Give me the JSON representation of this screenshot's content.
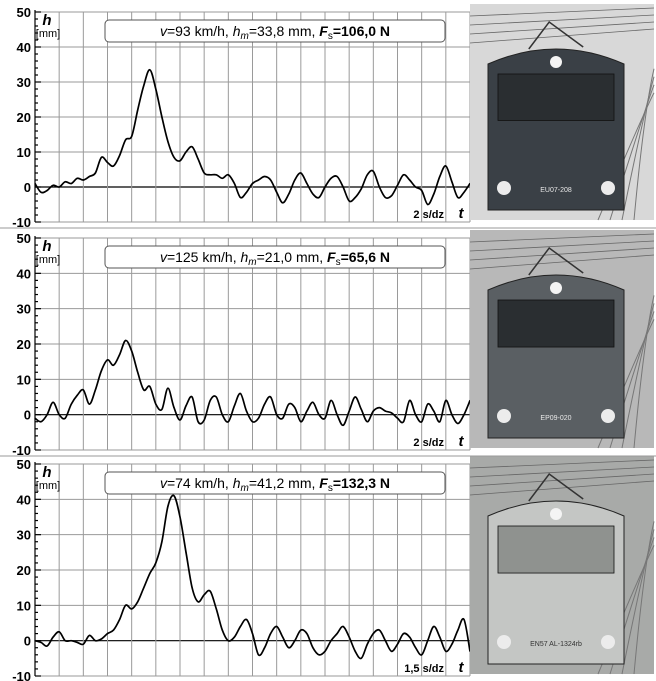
{
  "chart_data": [
    {
      "type": "line",
      "info": {
        "v_label": "v",
        "v_value": "=93 km/h,",
        "hm_label": "h",
        "hm_sub": "m",
        "hm_value": "=33,8 mm,",
        "fs_label": "F",
        "fs_sub": "s",
        "fs_value": "=106,0 N"
      },
      "ylabel": "h",
      "yunit": "[mm]",
      "xlabel": "t",
      "scale_label": "2 s/dz",
      "yticks": [
        "50",
        "40",
        "30",
        "20",
        "10",
        "0",
        "-10"
      ],
      "ylim": [
        -10,
        50
      ],
      "xlim": [
        0,
        36
      ],
      "x": [
        0,
        0.5,
        1,
        1.5,
        2,
        2.5,
        3,
        3.5,
        4,
        4.5,
        5,
        5.5,
        6,
        6.5,
        7,
        7.5,
        8,
        8.5,
        9,
        9.5,
        10,
        10.5,
        11,
        11.5,
        12,
        12.5,
        13,
        13.5,
        14,
        14.5,
        15,
        15.5,
        16,
        16.5,
        17,
        17.5,
        18,
        18.5,
        19,
        19.5,
        20,
        20.5,
        21,
        21.5,
        22,
        22.5,
        23,
        23.5,
        24,
        24.5,
        25,
        25.5,
        26,
        26.5,
        27,
        27.5,
        28,
        28.5,
        29,
        29.5,
        30,
        30.5,
        31,
        31.5,
        32,
        32.5,
        33,
        33.5,
        34,
        34.5,
        35,
        35.5,
        36
      ],
      "y": [
        1,
        -1.5,
        -1,
        0.5,
        0,
        1.5,
        1,
        2.5,
        2,
        3,
        4,
        8.5,
        7,
        6,
        9,
        13.5,
        14.5,
        22,
        29,
        33.5,
        28,
        20,
        13,
        8.5,
        7.5,
        10,
        11.5,
        8,
        4,
        3.5,
        3.5,
        2.5,
        3.5,
        1,
        -3,
        -1.5,
        1,
        2,
        3,
        2,
        -1.5,
        -4.5,
        -2,
        2,
        4,
        1,
        -2,
        -3,
        0,
        2.5,
        3,
        0,
        -4,
        -3,
        -0.5,
        3.5,
        4.5,
        0,
        -3,
        -2.5,
        0.5,
        3.5,
        2,
        0,
        -1,
        -5,
        -2,
        3,
        6,
        1.5,
        -3,
        -1.5,
        1
      ]
    },
    {
      "type": "line",
      "info": {
        "v_label": "v",
        "v_value": "=125 km/h,",
        "hm_label": "h",
        "hm_sub": "m",
        "hm_value": "=21,0 mm,",
        "fs_label": "F",
        "fs_sub": "s",
        "fs_value": "=65,6 N"
      },
      "ylabel": "h",
      "yunit": "[mm]",
      "xlabel": "t",
      "scale_label": "2 s/dz",
      "yticks": [
        "50",
        "40",
        "30",
        "20",
        "10",
        "0",
        "-10"
      ],
      "ylim": [
        -10,
        50
      ],
      "xlim": [
        0,
        36
      ],
      "x": [
        0,
        0.5,
        1,
        1.5,
        2,
        2.5,
        3,
        3.5,
        4,
        4.5,
        5,
        5.5,
        6,
        6.5,
        7,
        7.5,
        8,
        8.5,
        9,
        9.5,
        10,
        10.5,
        11,
        11.5,
        12,
        12.5,
        13,
        13.5,
        14,
        14.5,
        15,
        15.5,
        16,
        16.5,
        17,
        17.5,
        18,
        18.5,
        19,
        19.5,
        20,
        20.5,
        21,
        21.5,
        22,
        22.5,
        23,
        23.5,
        24,
        24.5,
        25,
        25.5,
        26,
        26.5,
        27,
        27.5,
        28,
        28.5,
        29,
        29.5,
        30,
        30.5,
        31,
        31.5,
        32,
        32.5,
        33,
        33.5,
        34,
        34.5,
        35,
        35.5,
        36
      ],
      "y": [
        -1,
        -2,
        0,
        3.5,
        0,
        -1,
        3,
        5.5,
        7,
        3,
        7,
        12.5,
        15.5,
        14,
        17,
        21,
        18,
        12,
        7,
        8,
        3,
        1.5,
        7.5,
        2,
        -1.5,
        2.5,
        5,
        -2,
        -1.5,
        4,
        5,
        0,
        -2,
        2.5,
        6,
        1,
        -2,
        -1,
        3,
        5,
        0,
        -1,
        3,
        2,
        -2,
        1,
        3.5,
        0,
        -1,
        4,
        0,
        -3,
        1,
        5,
        1.5,
        -2,
        1,
        2,
        1,
        0.5,
        -1,
        -2,
        4,
        0,
        -2,
        3,
        1,
        -2,
        4,
        0,
        -2.5,
        0,
        4
      ]
    },
    {
      "type": "line",
      "info": {
        "v_label": "v",
        "v_value": "=74 km/h,",
        "hm_label": "h",
        "hm_sub": "m",
        "hm_value": "=41,2 mm,",
        "fs_label": "F",
        "fs_sub": "s",
        "fs_value": "=132,3 N"
      },
      "ylabel": "h",
      "yunit": "[mm]",
      "xlabel": "t",
      "scale_label": "1,5 s/dz",
      "yticks": [
        "50",
        "40",
        "30",
        "20",
        "10",
        "0",
        "-10"
      ],
      "ylim": [
        -10,
        50
      ],
      "xlim": [
        0,
        36
      ],
      "x": [
        0,
        0.5,
        1,
        1.5,
        2,
        2.5,
        3,
        3.5,
        4,
        4.5,
        5,
        5.5,
        6,
        6.5,
        7,
        7.5,
        8,
        8.5,
        9,
        9.5,
        10,
        10.5,
        11,
        11.5,
        12,
        12.5,
        13,
        13.5,
        14,
        14.5,
        15,
        15.5,
        16,
        16.5,
        17,
        17.5,
        18,
        18.5,
        19,
        19.5,
        20,
        20.5,
        21,
        21.5,
        22,
        22.5,
        23,
        23.5,
        24,
        24.5,
        25,
        25.5,
        26,
        26.5,
        27,
        27.5,
        28,
        28.5,
        29,
        29.5,
        30,
        30.5,
        31,
        31.5,
        32,
        32.5,
        33,
        33.5,
        34,
        34.5,
        35,
        35.5,
        36
      ],
      "y": [
        0,
        -0.5,
        -1.5,
        1,
        2.5,
        0,
        0,
        -0.5,
        -1,
        1.5,
        0,
        0.5,
        2,
        3,
        6,
        10,
        9,
        11,
        15,
        19,
        22,
        28,
        38,
        41,
        35,
        25,
        15,
        11,
        13,
        14,
        9,
        3,
        0,
        1,
        4,
        6,
        2,
        -4,
        -2,
        2,
        4,
        1,
        -2,
        0,
        3,
        2,
        -2,
        -4,
        -3,
        0,
        2,
        4,
        1,
        -3,
        -5,
        -1,
        2,
        3,
        0,
        -3,
        -1,
        2,
        1,
        -2,
        -4,
        0,
        4,
        1,
        -3,
        -1,
        3,
        6,
        -3
      ]
    }
  ],
  "photos": [
    {
      "plate": "EU07-208"
    },
    {
      "plate": "EP09-020"
    },
    {
      "plate": "EN57 AL-1324rb"
    }
  ]
}
